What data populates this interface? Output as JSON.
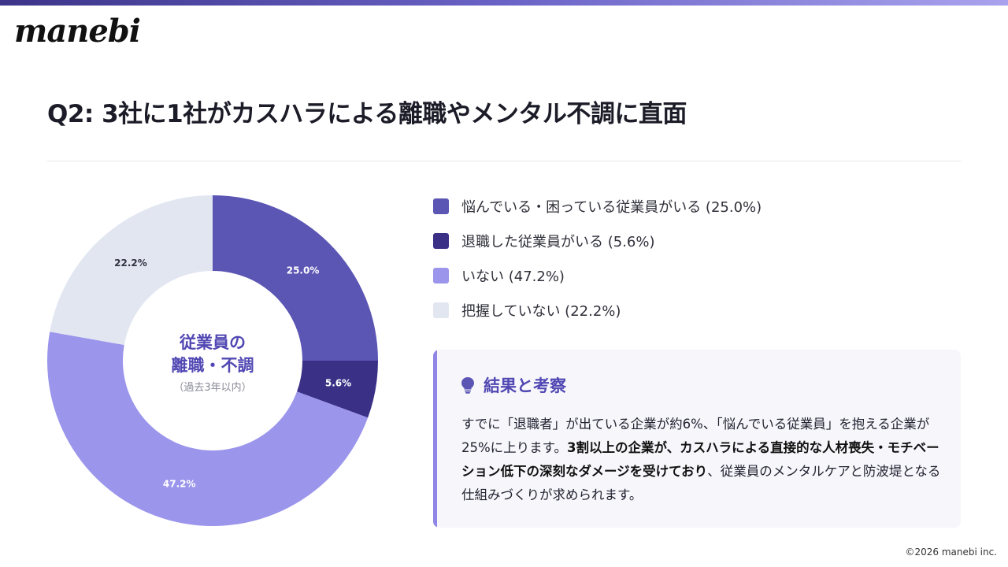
{
  "brand": {
    "logo_text": "manebi",
    "copyright": "©2026 manebi inc."
  },
  "page": {
    "title": "Q2: 3社に1社がカスハラによる離職やメンタル不調に直面"
  },
  "colors": {
    "troubled": "#5b55b4",
    "resigned": "#3a3187",
    "none": "#9b95ec",
    "unknown": "#e1e6f1",
    "accent": "#8f86e6",
    "center_text": "#5148b3"
  },
  "chart_data": {
    "type": "pie",
    "style": "donut",
    "title": "",
    "center_label_line1": "従業員の",
    "center_label_line2": "離職・不調",
    "center_sublabel": "（過去3年以内）",
    "series": [
      {
        "name": "悩んでいる・困っている従業員がいる",
        "value": 25.0,
        "label": "25.0%",
        "color": "#5b55b4"
      },
      {
        "name": "退職した従業員がいる",
        "value": 5.6,
        "label": "5.6%",
        "color": "#3a3187"
      },
      {
        "name": "いない",
        "value": 47.2,
        "label": "47.2%",
        "color": "#9b95ec"
      },
      {
        "name": "把握していない",
        "value": 22.2,
        "label": "22.2%",
        "color": "#e1e6f1"
      }
    ],
    "legend": [
      {
        "label": "悩んでいる・困っている従業員がいる (25.0%)"
      },
      {
        "label": "退職した従業員がいる (5.6%)"
      },
      {
        "label": "いない (47.2%)"
      },
      {
        "label": "把握していない (22.2%)"
      }
    ],
    "legend_position": "right"
  },
  "insight": {
    "icon": "lightbulb-icon",
    "title": "結果と考察",
    "body_part1": "すでに「退職者」が出ている企業が約6%、「悩んでいる従業員」を抱える企業が25%に上ります。",
    "body_bold": "3割以上の企業が、カスハラによる直接的な人材喪失・モチベーション低下の深刻なダメージを受けており",
    "body_part2": "、従業員のメンタルケアと防波堤となる仕組みづくりが求められます。"
  }
}
